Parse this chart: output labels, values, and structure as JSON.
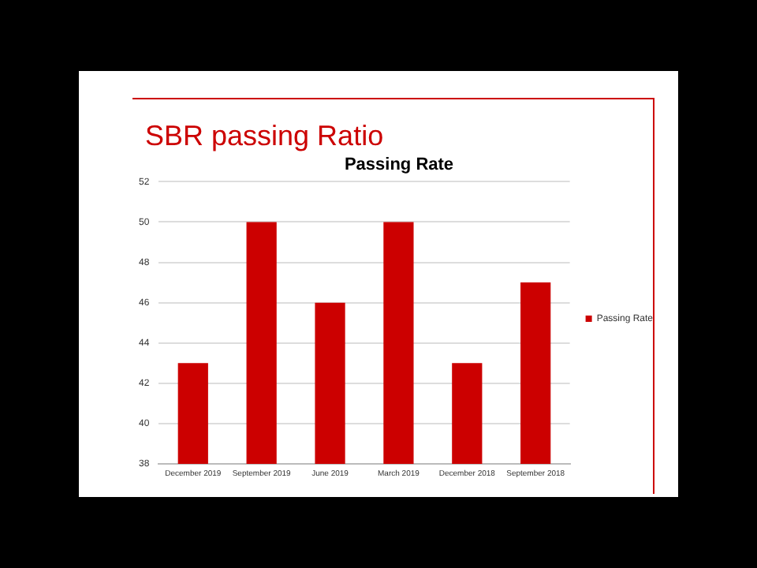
{
  "chart_data": {
    "type": "bar",
    "title": "SBR passing Ratio",
    "subtitle": "Passing Rate",
    "categories": [
      "December 2019",
      "September 2019",
      "June 2019",
      "March 2019",
      "December 2018",
      "September 2018"
    ],
    "series": [
      {
        "name": "Passing Rate",
        "color": "#cc0000",
        "values": [
          43,
          50,
          46,
          50,
          43,
          47
        ]
      }
    ],
    "ylim": [
      38,
      52
    ],
    "yticks": [
      38,
      40,
      42,
      44,
      46,
      48,
      50,
      52
    ],
    "grid": "y",
    "legend": "right"
  }
}
